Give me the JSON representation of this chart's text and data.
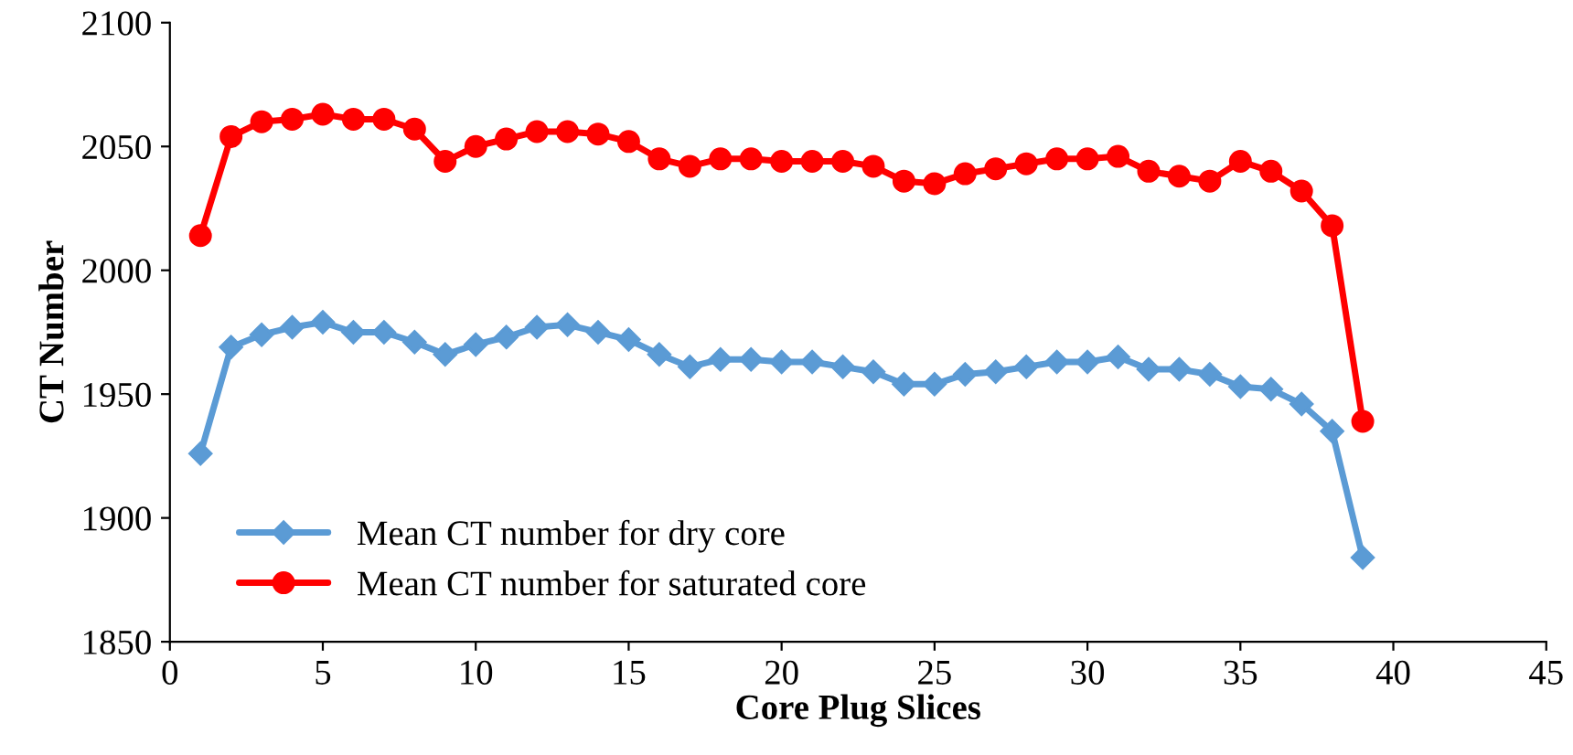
{
  "chart_data": {
    "type": "line",
    "xlabel": "Core Plug Slices",
    "ylabel": "CT Number",
    "x": [
      1,
      2,
      3,
      4,
      5,
      6,
      7,
      8,
      9,
      10,
      11,
      12,
      13,
      14,
      15,
      16,
      17,
      18,
      19,
      20,
      21,
      22,
      23,
      24,
      25,
      26,
      27,
      28,
      29,
      30,
      31,
      32,
      33,
      34,
      35,
      36,
      37,
      38,
      39
    ],
    "series": [
      {
        "name": "Mean CT number for dry core",
        "color": "#5b9bd5",
        "marker": "diamond",
        "values": [
          1926,
          1969,
          1974,
          1977,
          1979,
          1975,
          1975,
          1971,
          1966,
          1970,
          1973,
          1977,
          1978,
          1975,
          1972,
          1966,
          1961,
          1964,
          1964,
          1963,
          1963,
          1961,
          1959,
          1954,
          1954,
          1958,
          1959,
          1961,
          1963,
          1963,
          1965,
          1960,
          1960,
          1958,
          1953,
          1952,
          1946,
          1935,
          1884
        ]
      },
      {
        "name": "Mean CT number for saturated core",
        "color": "#ff0000",
        "marker": "circle",
        "values": [
          2014,
          2054,
          2060,
          2061,
          2063,
          2061,
          2061,
          2057,
          2044,
          2050,
          2053,
          2056,
          2056,
          2055,
          2052,
          2045,
          2042,
          2045,
          2045,
          2044,
          2044,
          2044,
          2042,
          2036,
          2035,
          2039,
          2041,
          2043,
          2045,
          2045,
          2046,
          2040,
          2038,
          2036,
          2044,
          2040,
          2032,
          2018,
          1939
        ]
      }
    ],
    "xlim": [
      0,
      45
    ],
    "xticks": [
      0,
      5,
      10,
      15,
      20,
      25,
      30,
      35,
      40,
      45
    ],
    "ylim": [
      1850,
      2100
    ],
    "yticks": [
      1850,
      1900,
      1950,
      2000,
      2050,
      2100
    ],
    "grid": false,
    "legend": "bottom left",
    "line_style": "solid"
  }
}
